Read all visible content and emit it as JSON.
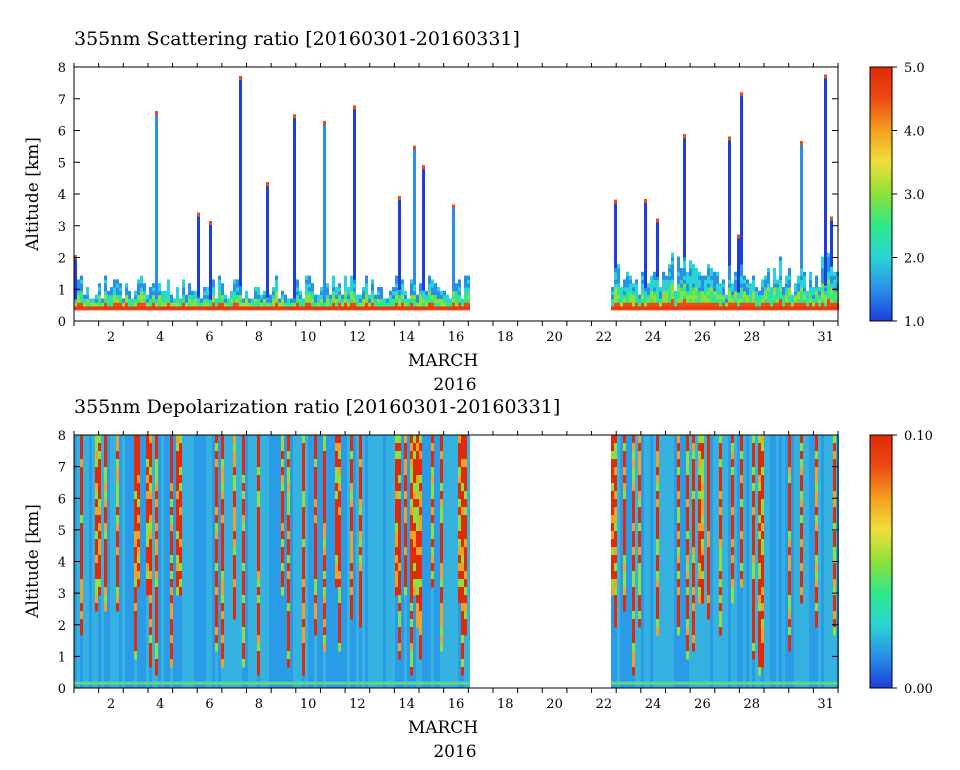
{
  "chart_data": [
    {
      "type": "heatmap",
      "title": "355nm Scattering ratio [20160301-20160331]",
      "ylabel": "Altitude [km]",
      "xlabel": "MARCH",
      "year_label": "2016",
      "x_ticks": [
        2,
        4,
        6,
        8,
        10,
        12,
        14,
        16,
        18,
        20,
        22,
        24,
        26,
        28,
        31
      ],
      "y_ticks": [
        0,
        1,
        2,
        3,
        4,
        5,
        6,
        7,
        8
      ],
      "xlim": [
        1,
        32
      ],
      "ylim": [
        0,
        8
      ],
      "data_gap_days": [
        17.0,
        22.7
      ],
      "colorbar": {
        "range": [
          1.0,
          5.0
        ],
        "tick_labels": [
          "1.0",
          "2.0",
          "3.0",
          "4.0",
          "5.0"
        ],
        "tick_values": [
          1.0,
          2.0,
          3.0,
          4.0,
          5.0
        ],
        "colors": [
          "#1c3fdc",
          "#2a8fe8",
          "#2ad4d4",
          "#2ee88a",
          "#8ee03a",
          "#f0e03a",
          "#f5a020",
          "#ee4a12",
          "#e02a0a"
        ]
      }
    },
    {
      "type": "heatmap",
      "title": "355nm Depolarization ratio [20160301-20160331]",
      "ylabel": "Altitude [km]",
      "xlabel": "MARCH",
      "year_label": "2016",
      "x_ticks": [
        2,
        4,
        6,
        8,
        10,
        12,
        14,
        16,
        18,
        20,
        22,
        24,
        26,
        28,
        31
      ],
      "y_ticks": [
        0,
        1,
        2,
        3,
        4,
        5,
        6,
        7,
        8
      ],
      "xlim": [
        1,
        32
      ],
      "ylim": [
        0,
        8
      ],
      "data_gap_days": [
        17.0,
        22.7
      ],
      "colorbar": {
        "range": [
          0.0,
          0.1
        ],
        "tick_labels": [
          "0.00",
          "0.10"
        ],
        "tick_values": [
          0.0,
          0.1
        ],
        "colors": [
          "#1c3fdc",
          "#2a8fe8",
          "#2ad4d4",
          "#2ee88a",
          "#8ee03a",
          "#f0e03a",
          "#f5a020",
          "#ee4a12",
          "#e02a0a"
        ]
      }
    }
  ]
}
